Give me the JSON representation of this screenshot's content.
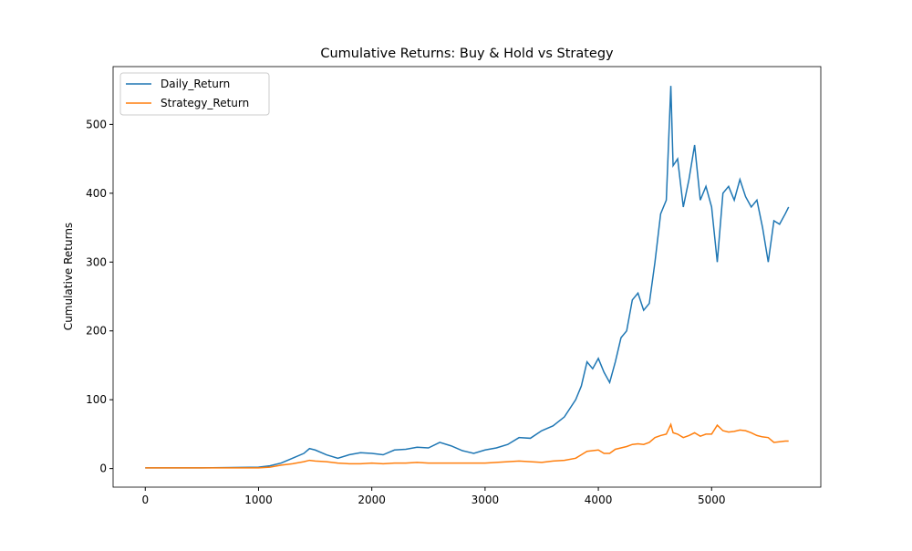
{
  "chart_data": {
    "type": "line",
    "title": "Cumulative Returns: Buy & Hold vs Strategy",
    "y_label": "Cumulative Returns",
    "x": [
      0,
      500,
      1000,
      1100,
      1200,
      1300,
      1400,
      1450,
      1500,
      1600,
      1700,
      1800,
      1900,
      2000,
      2100,
      2200,
      2300,
      2400,
      2500,
      2600,
      2700,
      2800,
      2900,
      3000,
      3100,
      3200,
      3300,
      3400,
      3500,
      3600,
      3700,
      3800,
      3850,
      3900,
      3950,
      4000,
      4050,
      4100,
      4150,
      4200,
      4250,
      4300,
      4350,
      4400,
      4450,
      4500,
      4550,
      4600,
      4640,
      4660,
      4700,
      4750,
      4800,
      4850,
      4900,
      4950,
      5000,
      5050,
      5100,
      5150,
      5200,
      5250,
      5300,
      5350,
      5400,
      5450,
      5500,
      5550,
      5600,
      5650,
      5680
    ],
    "series": [
      {
        "name": "Daily_Return",
        "color": "#1f77b4",
        "values": [
          1,
          1,
          2,
          4,
          8,
          15,
          22,
          29,
          27,
          20,
          15,
          20,
          23,
          22,
          20,
          27,
          28,
          31,
          30,
          38,
          33,
          26,
          22,
          27,
          30,
          35,
          45,
          44,
          55,
          62,
          75,
          100,
          120,
          155,
          145,
          160,
          140,
          125,
          155,
          190,
          200,
          245,
          255,
          230,
          240,
          300,
          370,
          390,
          556,
          440,
          450,
          380,
          420,
          470,
          390,
          410,
          380,
          300,
          400,
          410,
          390,
          420,
          395,
          380,
          390,
          350,
          300,
          360,
          355,
          370,
          380
        ]
      },
      {
        "name": "Strategy_Return",
        "color": "#ff7f0e",
        "values": [
          1,
          1,
          1,
          2,
          5,
          7,
          10,
          12,
          11,
          10,
          8,
          7,
          7,
          8,
          7,
          8,
          8,
          9,
          8,
          8,
          8,
          8,
          8,
          8,
          9,
          10,
          11,
          10,
          9,
          11,
          12,
          15,
          20,
          25,
          26,
          27,
          22,
          22,
          28,
          30,
          32,
          35,
          36,
          35,
          38,
          45,
          48,
          50,
          64,
          52,
          50,
          45,
          48,
          52,
          47,
          50,
          50,
          63,
          55,
          53,
          54,
          56,
          55,
          52,
          48,
          46,
          45,
          38,
          39,
          40,
          40
        ]
      }
    ],
    "xlim": [
      -284,
      5964
    ],
    "ylim": [
      -27,
      584
    ],
    "xticks": [
      0,
      1000,
      2000,
      3000,
      4000,
      5000
    ],
    "yticks": [
      0,
      100,
      200,
      300,
      400,
      500
    ],
    "legend": "upper left"
  }
}
